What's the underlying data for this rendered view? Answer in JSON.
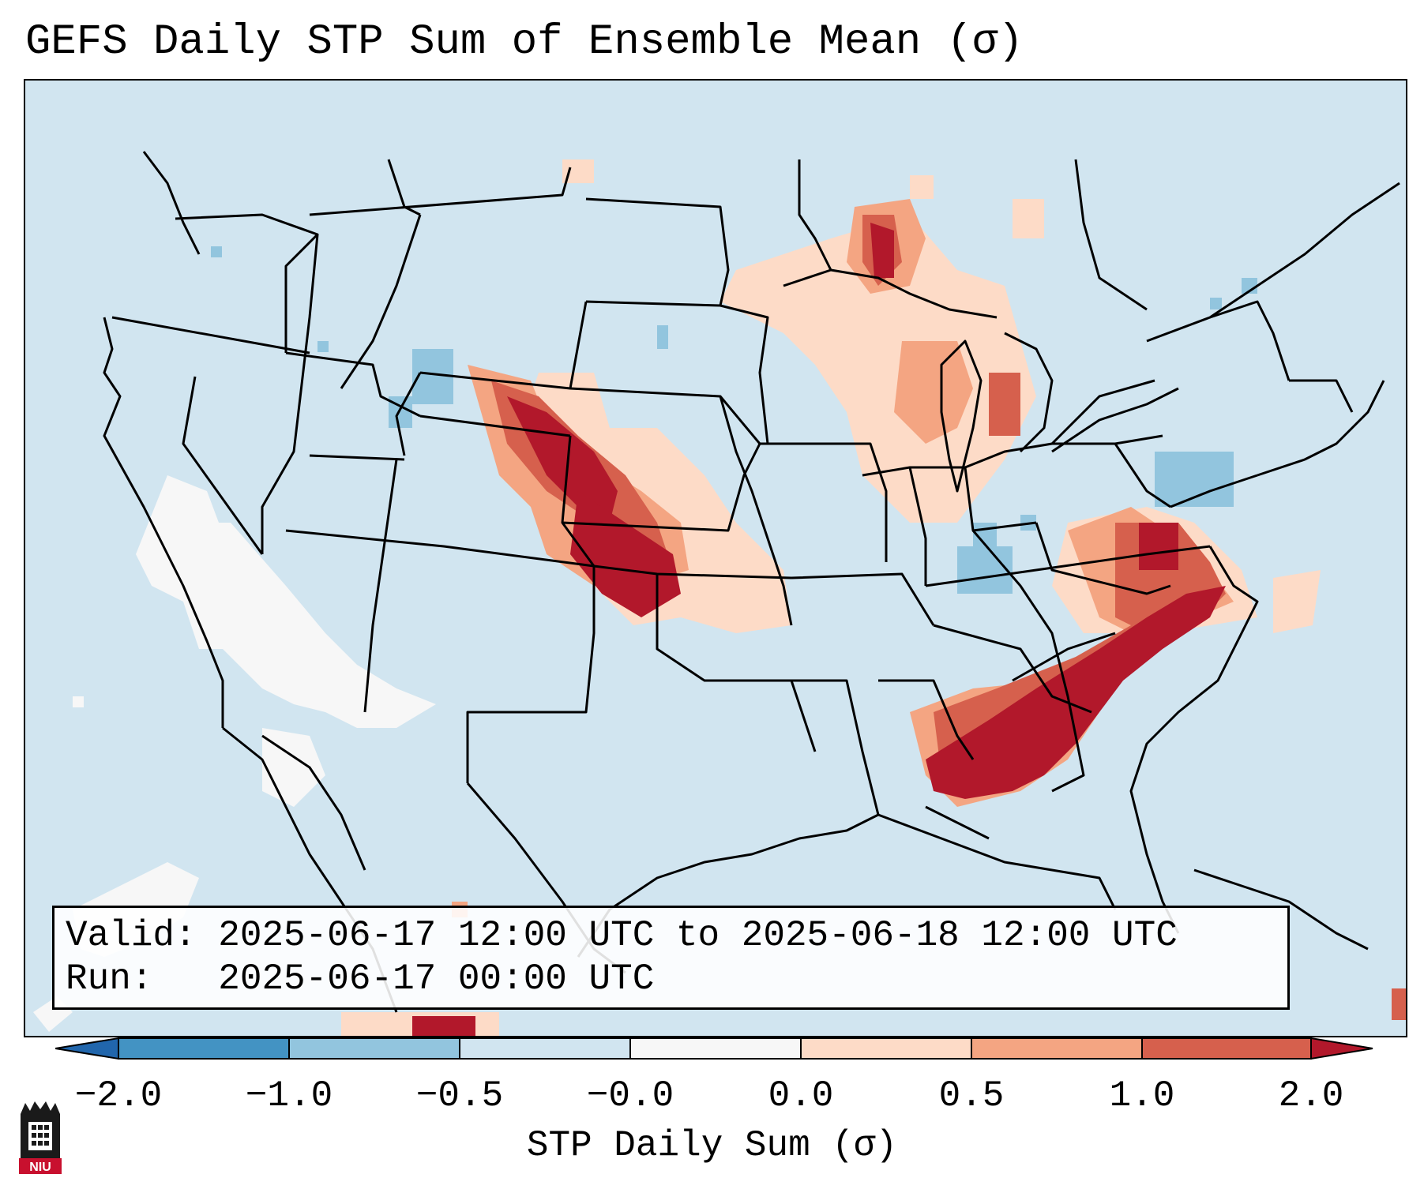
{
  "title": "GEFS Daily STP Sum of Ensemble Mean (σ)",
  "map": {
    "projection": "Lambert Conformal, CONUS",
    "background_color": "#d1e5f0",
    "features": [
      "coastlines",
      "state-borders",
      "country-borders"
    ]
  },
  "info_box": {
    "valid_line": "Valid: 2025-06-17 12:00 UTC to 2025-06-18 12:00 UTC",
    "run_line": "Run:   2025-06-17 00:00 UTC"
  },
  "colorbar": {
    "label": "STP Daily Sum (σ)",
    "tick_labels": [
      "−2.0",
      "−1.0",
      "−0.5",
      "−0.0",
      "0.0",
      "0.5",
      "1.0",
      "2.0"
    ],
    "bins": [
      {
        "range": "< -2.0",
        "color": "#2166ac"
      },
      {
        "range": "-2.0 to -1.0",
        "color": "#4393c3"
      },
      {
        "range": "-1.0 to -0.5",
        "color": "#92c5de"
      },
      {
        "range": "-0.5 to -0.0",
        "color": "#d1e5f0"
      },
      {
        "range": "-0.0 to 0.0",
        "color": "#f7f7f7"
      },
      {
        "range": "0.0 to 0.5",
        "color": "#fddbc7"
      },
      {
        "range": "0.5 to 1.0",
        "color": "#f4a582"
      },
      {
        "range": "1.0 to 2.0",
        "color": "#d6604d"
      },
      {
        "range": "> 2.0",
        "color": "#b2182b"
      }
    ]
  },
  "field_regions": [
    {
      "name": "high-plains-colorado-nebraska",
      "level": "1.0 to 2.0+",
      "color": "#b2182b"
    },
    {
      "name": "kansas",
      "level": "1.0 to 2.0+",
      "color": "#b2182b"
    },
    {
      "name": "tennessee-valley-alabama-georgia",
      "level": "> 2.0",
      "color": "#b2182b"
    },
    {
      "name": "virginia-north-carolina",
      "level": "1.0 to 2.0",
      "color": "#d6604d"
    },
    {
      "name": "western-lake-superior",
      "level": "1.0 to 2.0",
      "color": "#d6604d"
    },
    {
      "name": "lake-michigan",
      "level": "0.5 to 1.0",
      "color": "#f4a582"
    },
    {
      "name": "pennsylvania",
      "level": "-1.0 to -0.5",
      "color": "#92c5de"
    },
    {
      "name": "southwest-desert",
      "level": "-0.0 to 0.0",
      "color": "#f7f7f7"
    }
  ],
  "logo": {
    "text": "NIU"
  }
}
